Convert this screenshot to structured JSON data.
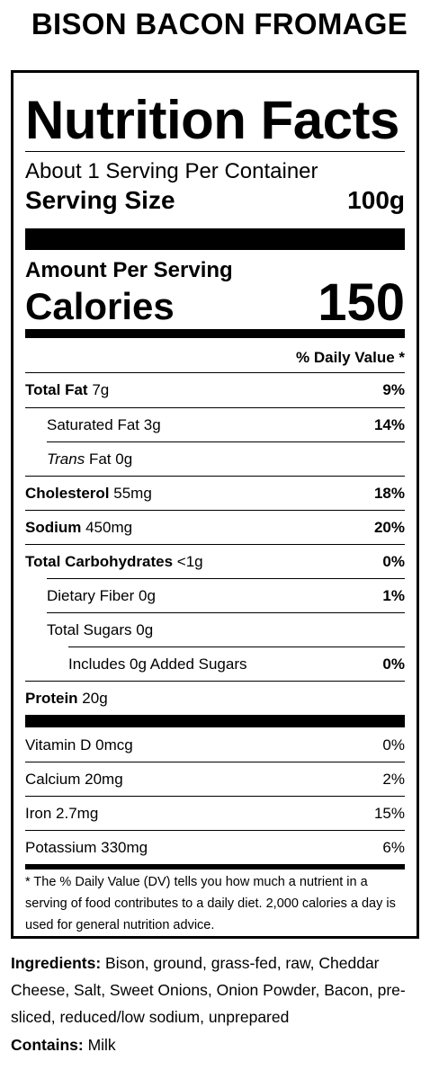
{
  "product_title": "BISON BACON FROMAGE",
  "label": {
    "title": "Nutrition Facts",
    "servings_per_container": "About 1 Serving Per Container",
    "serving_size_label": "Serving Size",
    "serving_size_value": "100g",
    "amount_per_serving": "Amount Per Serving",
    "calories_label": "Calories",
    "calories_value": "150",
    "daily_value_header": "% Daily Value *",
    "nutrients": [
      {
        "name": "Total Fat",
        "amount": "7g",
        "dv": "9%"
      },
      {
        "name": "Saturated Fat",
        "amount": "3g",
        "dv": "14%"
      },
      {
        "name": "Trans",
        "suffix": "Fat",
        "amount": "0g",
        "dv": ""
      },
      {
        "name": "Cholesterol",
        "amount": "55mg",
        "dv": "18%"
      },
      {
        "name": "Sodium",
        "amount": "450mg",
        "dv": "20%"
      },
      {
        "name": "Total Carbohydrates",
        "amount": "<1g",
        "dv": "0%"
      },
      {
        "name": "Dietary Fiber",
        "amount": "0g",
        "dv": "1%"
      },
      {
        "name": "Total Sugars",
        "amount": "0g",
        "dv": ""
      },
      {
        "name": "Includes 0g Added Sugars",
        "amount": "",
        "dv": "0%"
      },
      {
        "name": "Protein",
        "amount": "20g",
        "dv": ""
      }
    ],
    "vitamins": [
      {
        "name": "Vitamin D",
        "amount": "0mcg",
        "dv": "0%"
      },
      {
        "name": "Calcium",
        "amount": "20mg",
        "dv": "2%"
      },
      {
        "name": "Iron",
        "amount": "2.7mg",
        "dv": "15%"
      },
      {
        "name": "Potassium",
        "amount": "330mg",
        "dv": "6%"
      }
    ],
    "footnote": "* The % Daily Value (DV) tells you how much a nutrient in a serving of food contributes to a daily diet. 2,000 calories a day is used for general nutrition advice."
  },
  "ingredients": {
    "label": "Ingredients:",
    "text": "Bison, ground, grass-fed, raw, Cheddar Cheese, Salt, Sweet Onions, Onion Powder, Bacon, pre-sliced, reduced/low sodium, unprepared"
  },
  "contains": {
    "label": "Contains:",
    "text": "Milk"
  }
}
